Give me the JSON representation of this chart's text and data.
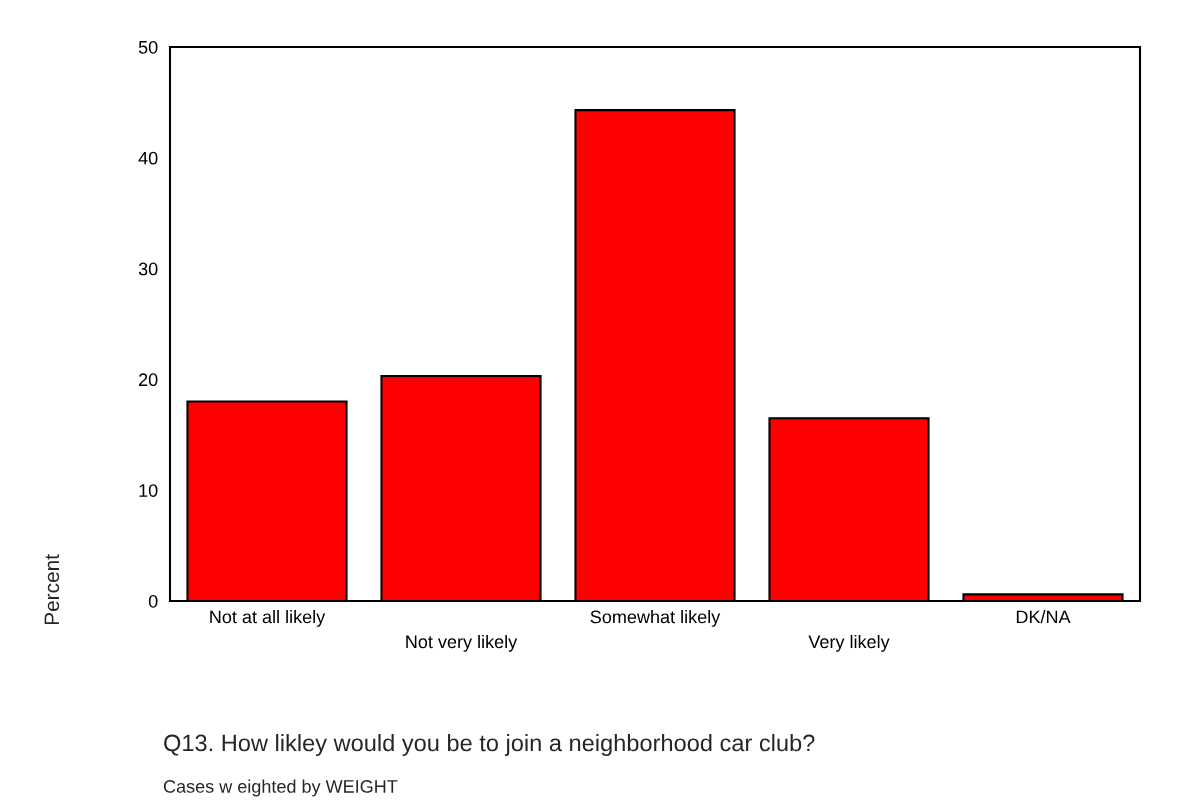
{
  "chart_data": {
    "type": "bar",
    "categories": [
      "Not at all likely",
      "Not very likely",
      "Somewhat likely",
      "Very likely",
      "DK/NA"
    ],
    "values": [
      18.0,
      20.3,
      44.3,
      16.5,
      0.6
    ],
    "color": "#ff0000",
    "ylabel": "Percent",
    "xlabel": "Q13. How likley would you be to join a neighborhood car club?",
    "annotations": [
      "Cases w eighted by WEIGHT"
    ],
    "ylim": [
      0,
      50
    ],
    "yticks": [
      0,
      10,
      20,
      30,
      40,
      50
    ],
    "grid": false,
    "legend": false
  }
}
